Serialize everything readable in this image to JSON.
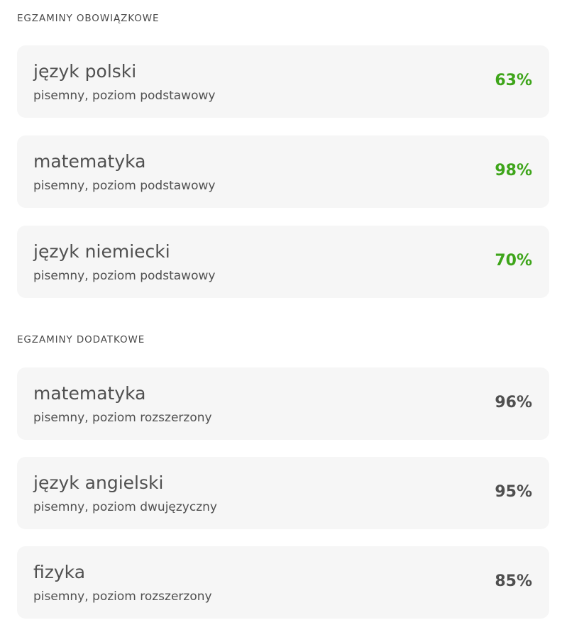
{
  "sections": [
    {
      "title": "EGZAMINY OBOWIĄZKOWE",
      "exams": [
        {
          "subject": "język polski",
          "level": "pisemny, poziom podstawowy",
          "score": "63%"
        },
        {
          "subject": "matematyka",
          "level": "pisemny, poziom podstawowy",
          "score": "98%"
        },
        {
          "subject": "język niemiecki",
          "level": "pisemny, poziom podstawowy",
          "score": "70%"
        }
      ]
    },
    {
      "title": "EGZAMINY DODATKOWE",
      "exams": [
        {
          "subject": "matematyka",
          "level": "pisemny, poziom rozszerzony",
          "score": "96%"
        },
        {
          "subject": "język angielski",
          "level": "pisemny, poziom dwujęzyczny",
          "score": "95%"
        },
        {
          "subject": "fizyka",
          "level": "pisemny, poziom rozszerzony",
          "score": "85%"
        }
      ]
    }
  ],
  "colors": {
    "mandatory_score": "#3ea51a",
    "additional_score": "#4f4f4f",
    "card_background": "#f6f6f6"
  }
}
